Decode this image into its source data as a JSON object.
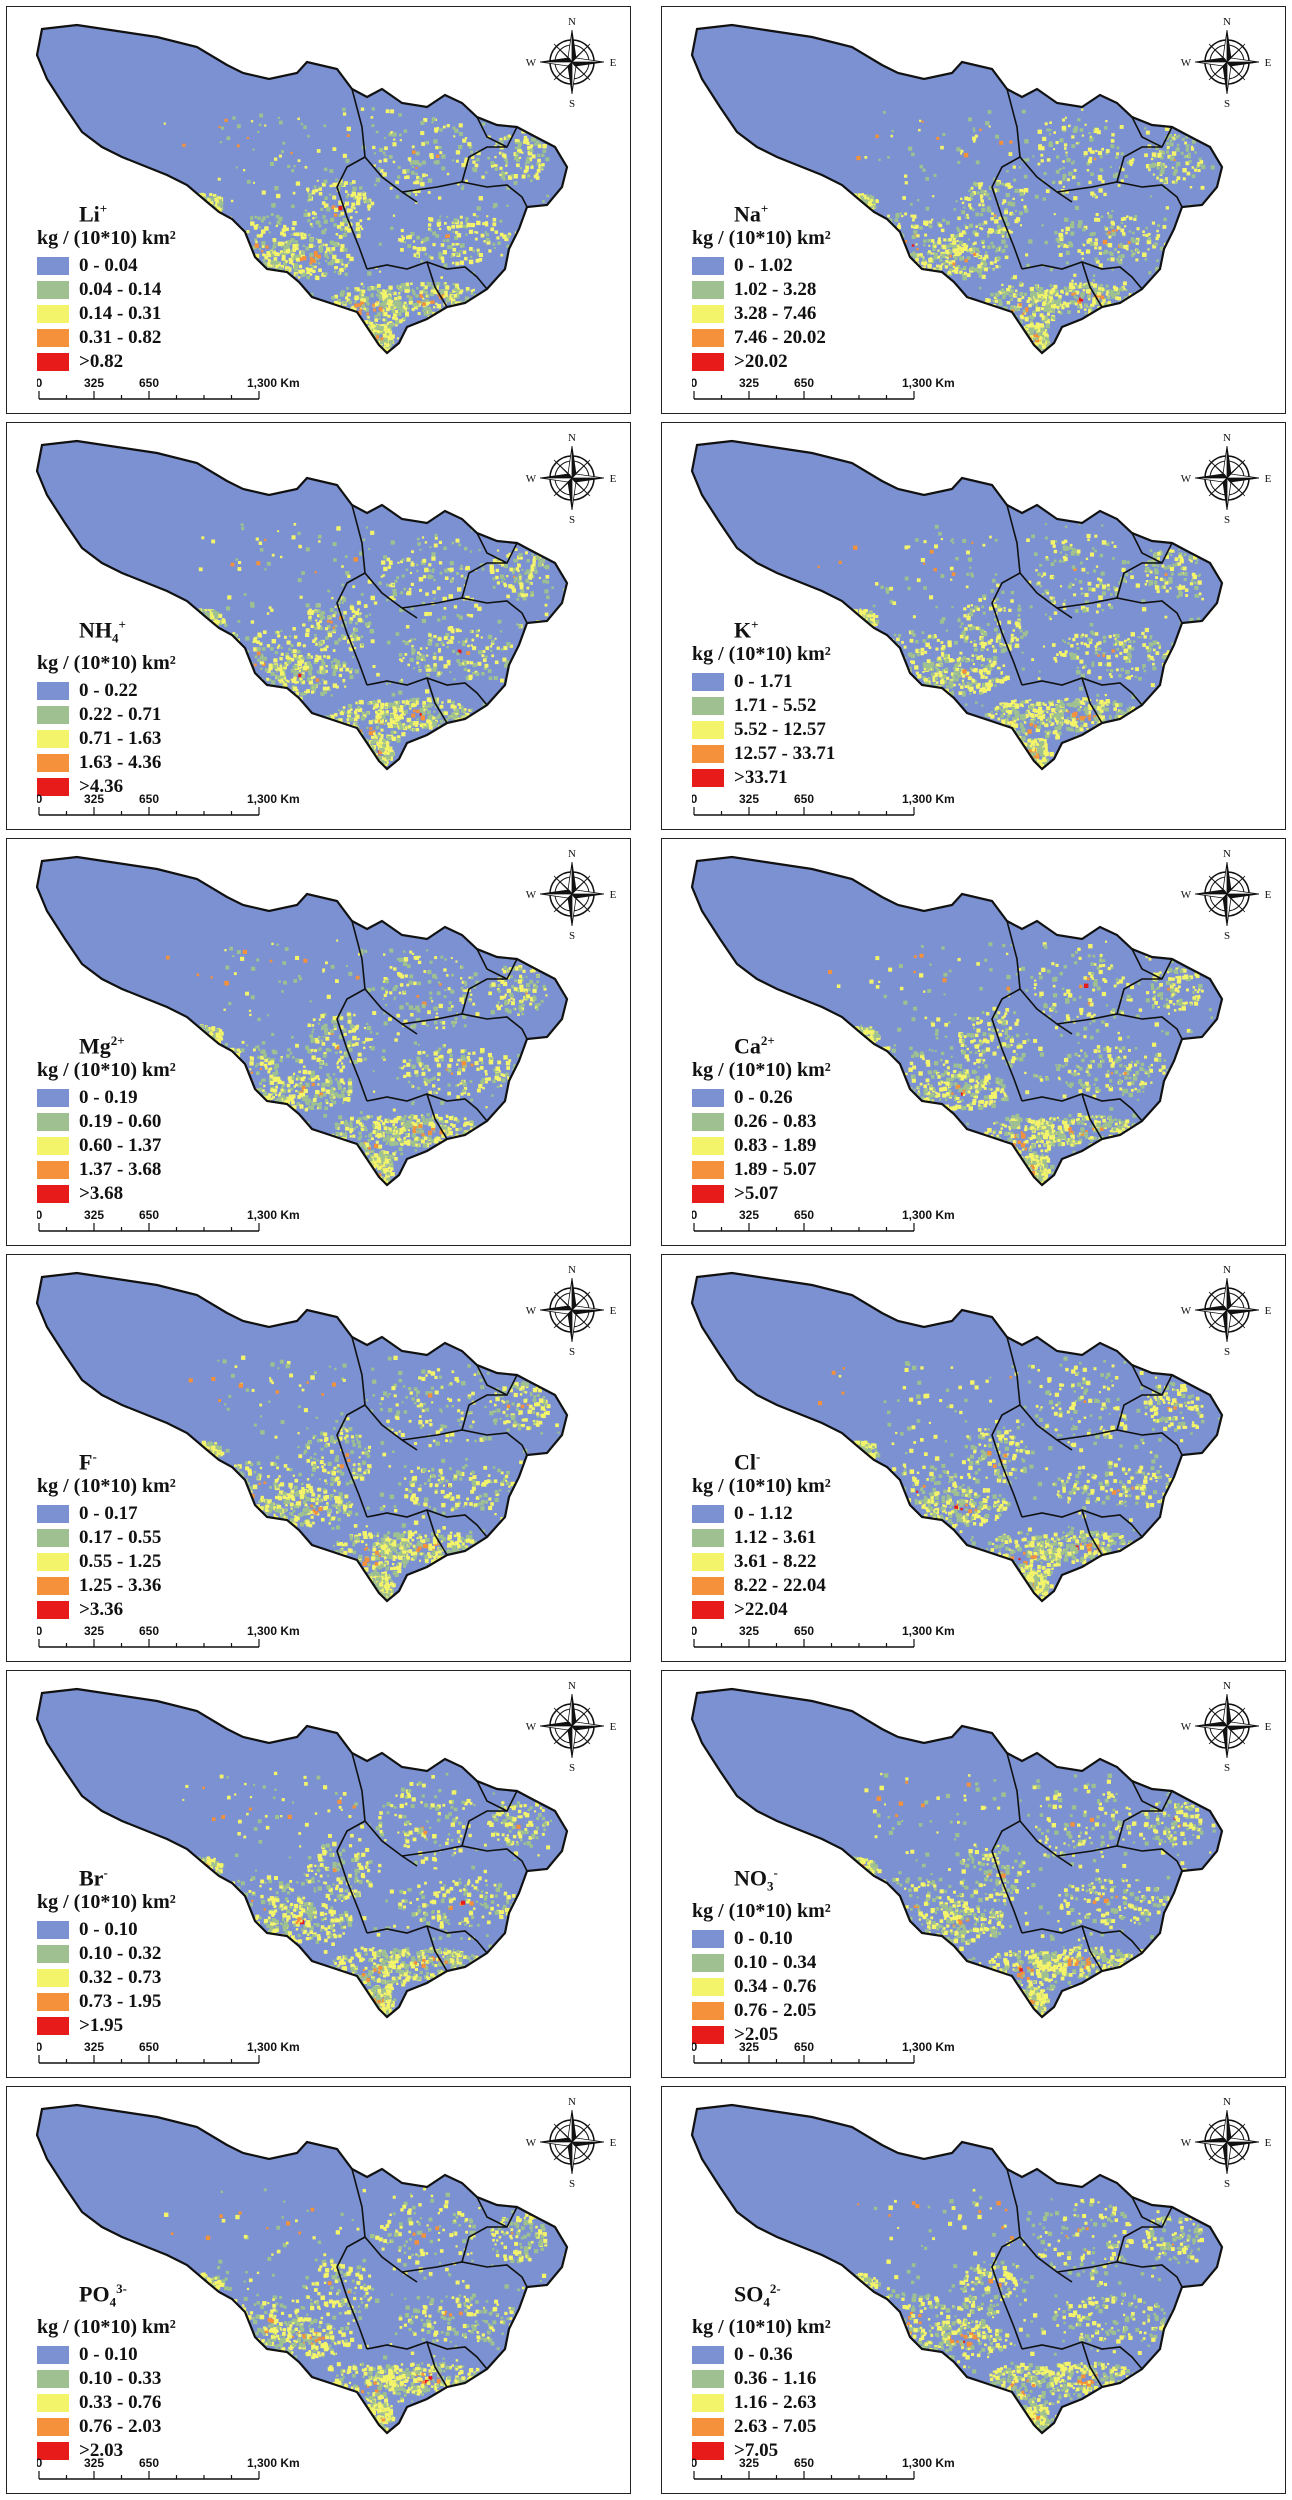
{
  "unit": "kg / (10*10) km²",
  "compass": {
    "n": "N",
    "s": "S",
    "e": "E",
    "w": "W"
  },
  "scale": {
    "ticks": [
      "0",
      "325",
      "650",
      "1,300 Km"
    ]
  },
  "colors": {
    "class1": "#7b91d2",
    "class2": "#9fc090",
    "class3": "#f4f46a",
    "class4": "#f4913a",
    "class5": "#e81b1b"
  },
  "maps": [
    {
      "ion": "Li",
      "charge": "+",
      "style": "sup",
      "classes": [
        "0 - 0.04",
        "0.04 - 0.14",
        "0.14 - 0.31",
        "0.31 - 0.82",
        ">0.82"
      ]
    },
    {
      "ion": "Na",
      "charge": "+",
      "style": "sup",
      "classes": [
        "0 - 1.02",
        "1.02 - 3.28",
        "3.28 - 7.46",
        "7.46 - 20.02",
        ">20.02"
      ]
    },
    {
      "ion": "NH",
      "sub": "4",
      "charge": "+",
      "style": "subsup",
      "classes": [
        "0 - 0.22",
        "0.22 - 0.71",
        "0.71 - 1.63",
        "1.63 - 4.36",
        ">4.36"
      ]
    },
    {
      "ion": "K",
      "charge": "+",
      "style": "sup",
      "classes": [
        "0 - 1.71",
        "1.71 - 5.52",
        "5.52 - 12.57",
        "12.57 - 33.71",
        ">33.71"
      ]
    },
    {
      "ion": "Mg",
      "charge": "2+",
      "style": "sup",
      "classes": [
        "0 - 0.19",
        "0.19 - 0.60",
        "0.60 - 1.37",
        "1.37 - 3.68",
        ">3.68"
      ]
    },
    {
      "ion": "Ca",
      "charge": "2+",
      "style": "sup",
      "classes": [
        "0 - 0.26",
        "0.26 - 0.83",
        "0.83 - 1.89",
        "1.89 - 5.07",
        ">5.07"
      ]
    },
    {
      "ion": "F",
      "charge": "-",
      "style": "sup",
      "classes": [
        "0 - 0.17",
        "0.17 - 0.55",
        "0.55 - 1.25",
        "1.25 - 3.36",
        ">3.36"
      ]
    },
    {
      "ion": "Cl",
      "charge": "-",
      "style": "sup",
      "classes": [
        "0 - 1.12",
        "1.12 - 3.61",
        "3.61 - 8.22",
        "8.22 - 22.04",
        ">22.04"
      ]
    },
    {
      "ion": "Br",
      "charge": "-",
      "style": "sup",
      "classes": [
        "0 - 0.10",
        "0.10 - 0.32",
        "0.32 - 0.73",
        "0.73 - 1.95",
        ">1.95"
      ]
    },
    {
      "ion": "NO",
      "sub": "3",
      "charge": "-",
      "style": "subsup",
      "classes": [
        "0 - 0.10",
        "0.10 - 0.34",
        "0.34 - 0.76",
        "0.76 - 2.05",
        ">2.05"
      ]
    },
    {
      "ion": "PO",
      "sub": "4",
      "charge": "3-",
      "style": "subsup",
      "classes": [
        "0 - 0.10",
        "0.10 - 0.33",
        "0.33 - 0.76",
        "0.76 - 2.03",
        ">2.03"
      ]
    },
    {
      "ion": "SO",
      "sub": "4",
      "charge": "2-",
      "style": "subsup",
      "classes": [
        "0 - 0.36",
        "0.36 - 1.16",
        "1.16 - 2.63",
        "2.63 - 7.05",
        ">7.05"
      ]
    }
  ]
}
